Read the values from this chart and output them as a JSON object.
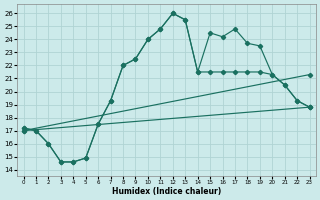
{
  "xlabel": "Humidex (Indice chaleur)",
  "background_color": "#cceaea",
  "grid_color": "#b0d4d4",
  "line_color": "#1a7060",
  "xlim": [
    -0.5,
    23.5
  ],
  "ylim": [
    13.5,
    26.7
  ],
  "yticks": [
    14,
    15,
    16,
    17,
    18,
    19,
    20,
    21,
    22,
    23,
    24,
    25,
    26
  ],
  "xticks": [
    0,
    1,
    2,
    3,
    4,
    5,
    6,
    7,
    8,
    9,
    10,
    11,
    12,
    13,
    14,
    15,
    16,
    17,
    18,
    19,
    20,
    21,
    22,
    23
  ],
  "line1_x": [
    0,
    1,
    2,
    3,
    4,
    5,
    6,
    7,
    8,
    9,
    10,
    11,
    12,
    13,
    14,
    15,
    16,
    17,
    18,
    19,
    20,
    21,
    22,
    23
  ],
  "line1_y": [
    17.2,
    17.0,
    16.0,
    14.6,
    14.6,
    14.9,
    17.5,
    19.3,
    22.0,
    22.5,
    24.0,
    24.8,
    26.0,
    25.5,
    21.5,
    24.5,
    24.2,
    24.8,
    23.7,
    23.5,
    21.3,
    20.5,
    19.3,
    18.8
  ],
  "line2_x": [
    0,
    1,
    2,
    3,
    4,
    5,
    6,
    7,
    8,
    9,
    10,
    11,
    12,
    13,
    14,
    15,
    16,
    17,
    18,
    19,
    20,
    21,
    22,
    23
  ],
  "line2_y": [
    17.2,
    17.0,
    16.0,
    14.6,
    14.6,
    14.9,
    17.5,
    19.3,
    22.0,
    22.5,
    24.0,
    24.8,
    26.0,
    25.5,
    21.5,
    21.5,
    21.5,
    21.5,
    21.5,
    21.5,
    21.3,
    20.5,
    19.3,
    18.8
  ],
  "line3_x": [
    0,
    23
  ],
  "line3_y": [
    17.0,
    21.3
  ],
  "line4_x": [
    0,
    23
  ],
  "line4_y": [
    17.0,
    18.8
  ]
}
